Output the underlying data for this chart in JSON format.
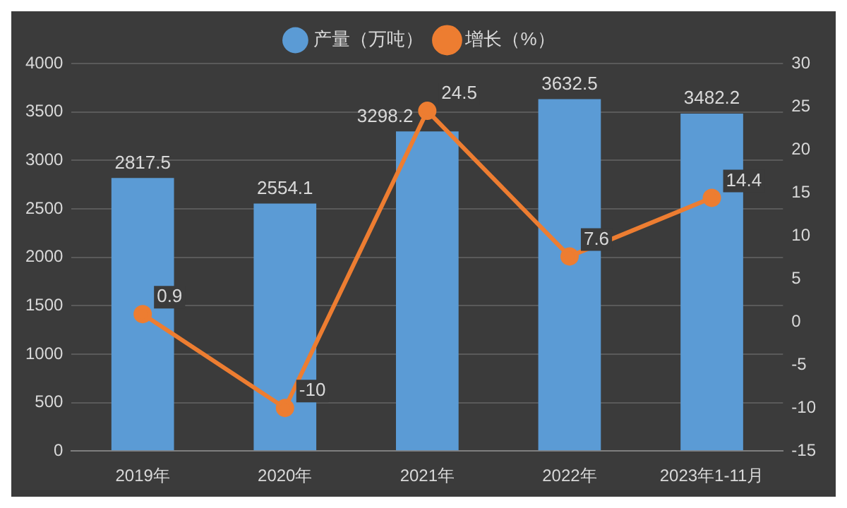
{
  "chart_data": {
    "type": "bar",
    "categories": [
      "2019年",
      "2020年",
      "2021年",
      "2022年",
      "2023年1-11月"
    ],
    "series": [
      {
        "name": "产量（万吨）",
        "color": "#5b9bd5",
        "values": [
          2817.5,
          2554.1,
          3298.2,
          3632.5,
          3482.2
        ]
      },
      {
        "name": "增长（%）",
        "type": "line",
        "axis": "y2",
        "color": "#ed7d31",
        "values": [
          0.9,
          -10,
          24.5,
          7.6,
          14.4
        ]
      }
    ],
    "ylim": [
      0,
      4000
    ],
    "yticks": [
      0,
      500,
      1000,
      1500,
      2000,
      2500,
      3000,
      3500,
      4000
    ],
    "y2lim": [
      -15,
      30
    ],
    "y2ticks": [
      -15,
      -10,
      -5,
      0,
      5,
      10,
      15,
      20,
      25,
      30
    ],
    "grid": "y",
    "legend": "top",
    "marker": "circle",
    "data_labels": true
  }
}
